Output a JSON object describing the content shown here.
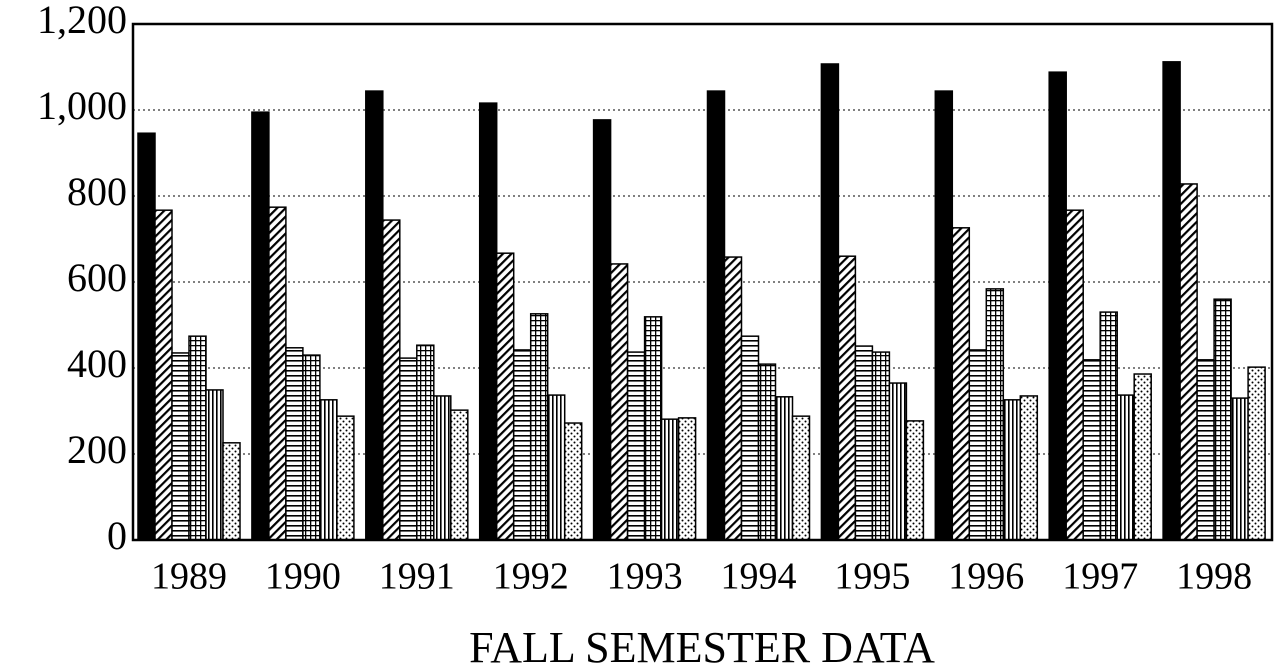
{
  "chart_data": {
    "type": "bar",
    "xlabel": "FALL SEMESTER DATA",
    "categories": [
      "1989",
      "1990",
      "1991",
      "1992",
      "1993",
      "1994",
      "1995",
      "1996",
      "1997",
      "1998"
    ],
    "series": [
      {
        "color": "#000000",
        "pattern": "solid",
        "values": [
          946,
          995,
          1044,
          1016,
          977,
          1044,
          1107,
          1044,
          1088,
          1112
        ]
      },
      {
        "color": "#000000",
        "pattern": "diagonal",
        "values": [
          767,
          774,
          744,
          667,
          642,
          658,
          660,
          726,
          767,
          828
        ]
      },
      {
        "color": "#000000",
        "pattern": "horizontal",
        "values": [
          435,
          447,
          423,
          442,
          437,
          474,
          451,
          442,
          419,
          419
        ]
      },
      {
        "color": "#000000",
        "pattern": "grid",
        "values": [
          474,
          430,
          453,
          526,
          519,
          409,
          437,
          584,
          530,
          560
        ]
      },
      {
        "color": "#000000",
        "pattern": "vertical",
        "values": [
          349,
          326,
          335,
          337,
          281,
          333,
          365,
          326,
          337,
          330
        ]
      },
      {
        "color": "#000000",
        "pattern": "dots",
        "values": [
          226,
          288,
          302,
          272,
          284,
          288,
          277,
          335,
          386,
          402
        ]
      }
    ],
    "ylim": [
      0,
      1200
    ],
    "yticks": [
      0,
      200,
      400,
      600,
      800,
      {
        "value": 1000,
        "label": "1,000"
      },
      {
        "value": 1200,
        "label": "1,200"
      }
    ],
    "grid": true
  }
}
